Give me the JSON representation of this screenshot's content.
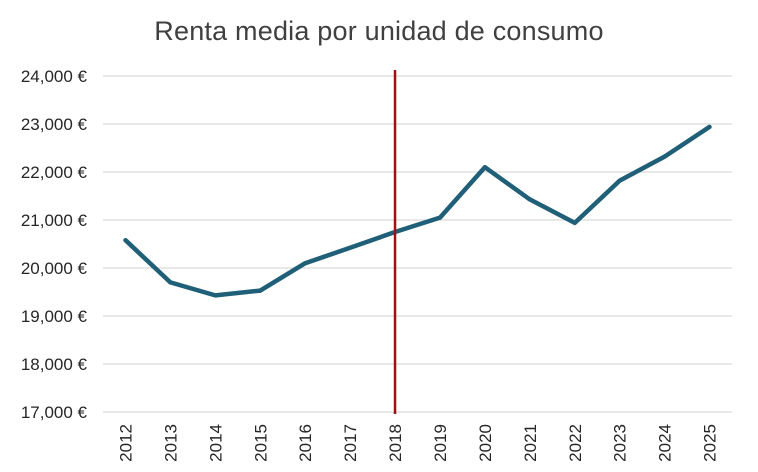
{
  "chart_data": {
    "type": "line",
    "title": "Renta media por unidad de consumo",
    "xlabel": "",
    "ylabel": "",
    "categories": [
      "2012",
      "2013",
      "2014",
      "2015",
      "2016",
      "2017",
      "2018",
      "2019",
      "2020",
      "2021",
      "2022",
      "2023",
      "2024",
      "2025"
    ],
    "series": [
      {
        "values": [
          20580,
          19700,
          19430,
          19530,
          20100,
          20420,
          20750,
          21050,
          22100,
          21430,
          20940,
          21820,
          22320,
          22940
        ],
        "color": "#1f5f78"
      }
    ],
    "ylim": [
      17000,
      24000
    ],
    "yticks": [
      17000,
      18000,
      19000,
      20000,
      21000,
      22000,
      23000,
      24000
    ],
    "ytick_labels": [
      "17,000 €",
      "18,000 €",
      "19,000 €",
      "20,000 €",
      "21,000 €",
      "22,000 €",
      "23,000 €",
      "24,000 €"
    ],
    "grid": true,
    "marker_line": {
      "x": "2018",
      "color": "#a01010"
    }
  }
}
